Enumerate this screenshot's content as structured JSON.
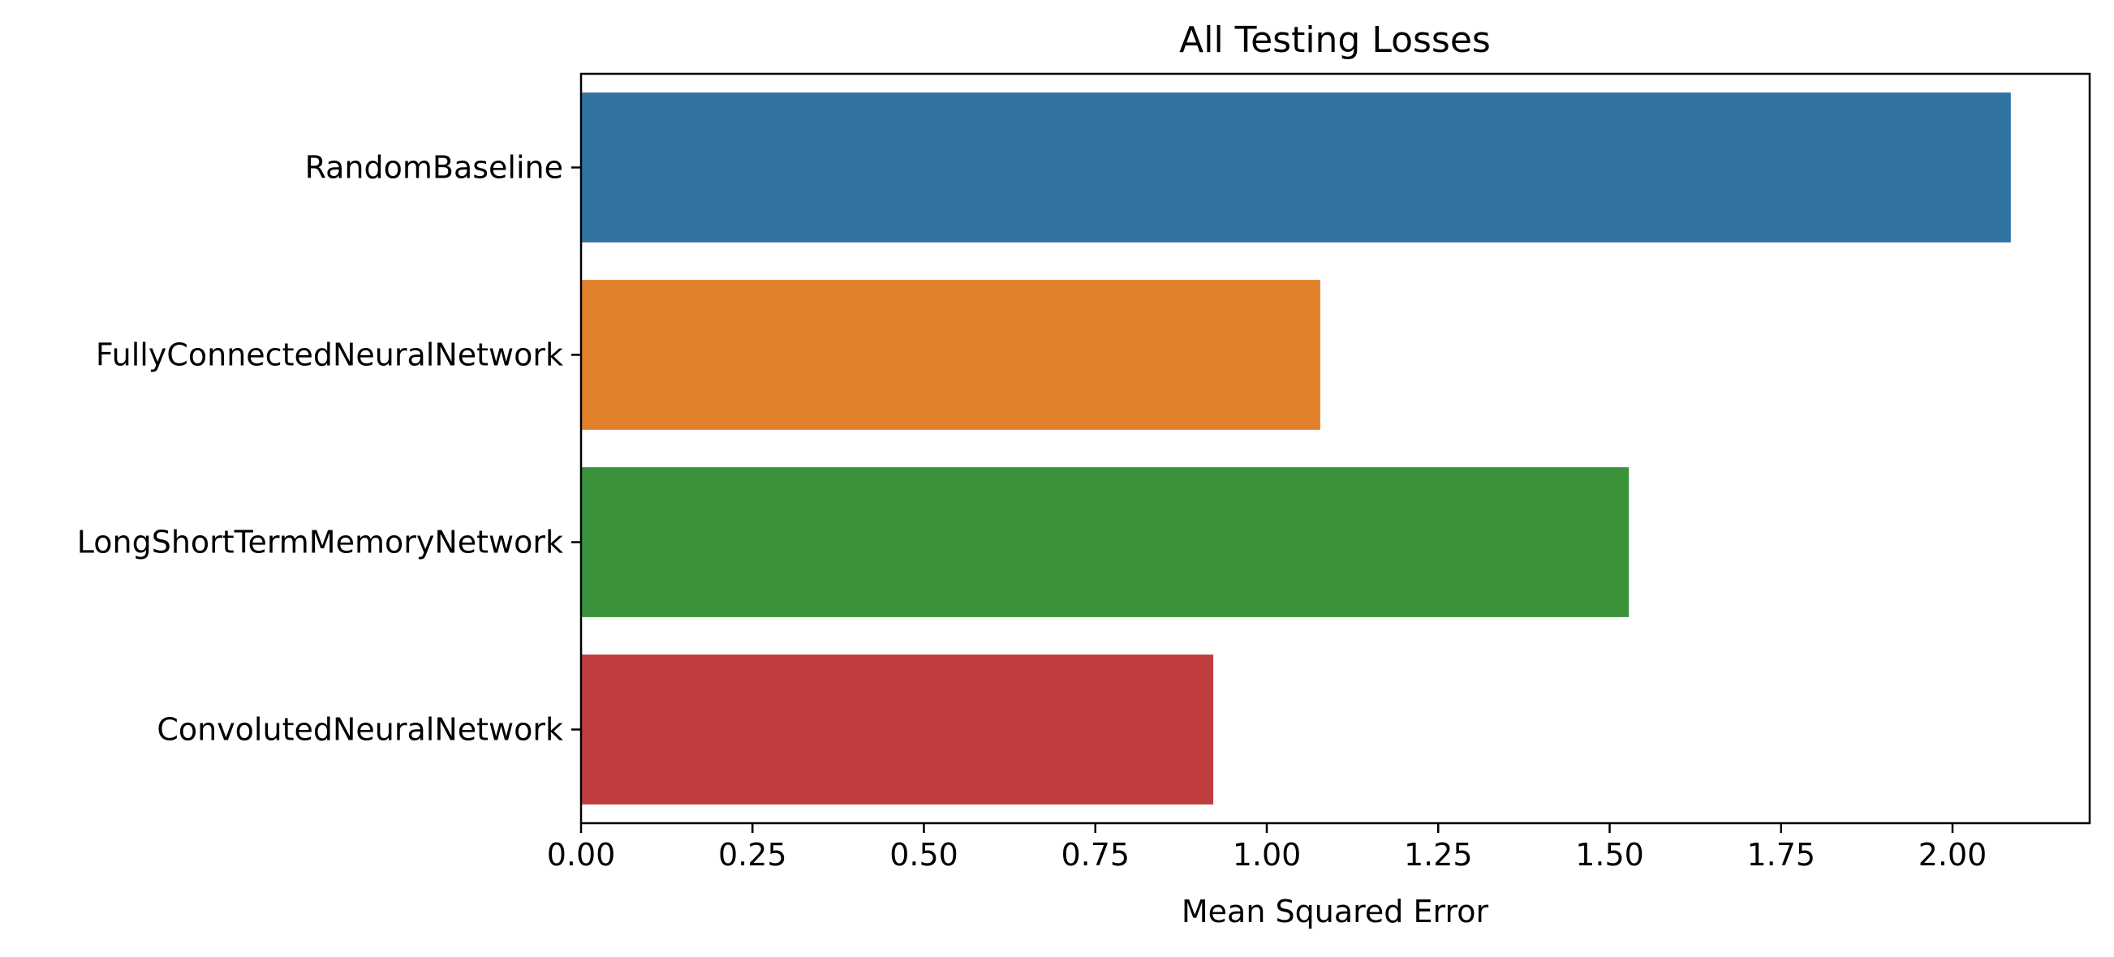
{
  "chart_data": {
    "type": "bar",
    "orientation": "horizontal",
    "title": "All Testing Losses",
    "xlabel": "Mean Squared Error",
    "ylabel": "",
    "xlim": [
      0,
      2.2
    ],
    "xticks": [
      0.0,
      0.25,
      0.5,
      0.75,
      1.0,
      1.25,
      1.5,
      1.75,
      2.0
    ],
    "xtick_labels": [
      "0.00",
      "0.25",
      "0.50",
      "0.75",
      "1.00",
      "1.25",
      "1.50",
      "1.75",
      "2.00"
    ],
    "categories": [
      "RandomBaseline",
      "FullyConnectedNeuralNetwork",
      "LongShortTermMemoryNetwork",
      "ConvolutedNeuralNetwork"
    ],
    "values": [
      2.085,
      1.078,
      1.528,
      0.922
    ],
    "colors": [
      "#3274a1",
      "#e1812c",
      "#3a923a",
      "#c03d3e"
    ],
    "grid": false,
    "legend": "none"
  }
}
